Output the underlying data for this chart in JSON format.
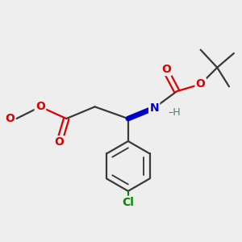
{
  "bg_color": "#eeeeee",
  "bond_color": "#3a3a3a",
  "o_color": "#dd0000",
  "n_color": "#0000cc",
  "cl_color": "#008800",
  "h_color": "#557777",
  "line_width": 1.6,
  "font_size_atom": 10,
  "font_size_h": 9,
  "figsize": [
    3.0,
    3.0
  ],
  "dpi": 100,
  "xlim": [
    0,
    10
  ],
  "ylim": [
    0,
    10
  ]
}
